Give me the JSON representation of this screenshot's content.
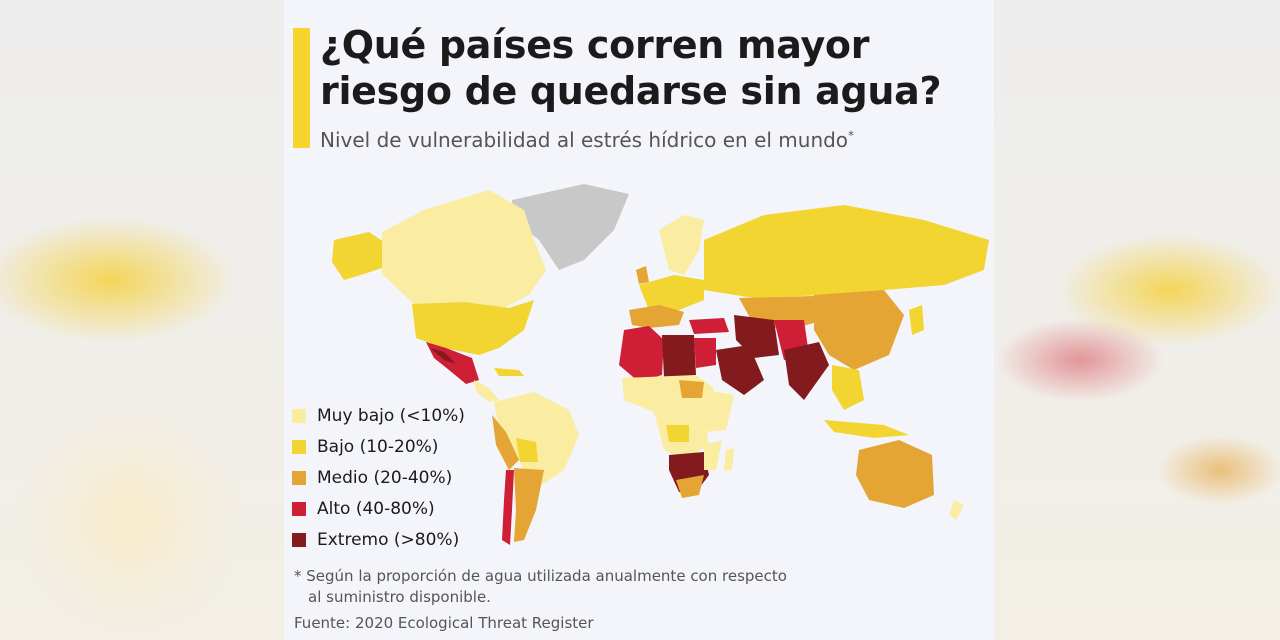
{
  "title": "¿Qué países corren mayor riesgo de quedarse sin agua?",
  "subtitle": "Nivel de vulnerabilidad al estrés hídrico en el mundo",
  "subtitle_mark": "*",
  "legend": [
    {
      "label": "Muy bajo (<10%)",
      "color": "#faeca0"
    },
    {
      "label": "Bajo (10-20%)",
      "color": "#f2d530"
    },
    {
      "label": "Medio (20-40%)",
      "color": "#e4a535"
    },
    {
      "label": "Alto (40-80%)",
      "color": "#cf1f36"
    },
    {
      "label": "Extremo (>80%)",
      "color": "#821a1e"
    }
  ],
  "footnote_line1": "* Según la proporción de agua utilizada anualmente con respecto",
  "footnote_line2": "al suministro disponible.",
  "source": "Fuente: 2020 Ecological Threat Register",
  "colors": {
    "accent": "#f5d52e",
    "no_data": "#c8c8c8"
  }
}
